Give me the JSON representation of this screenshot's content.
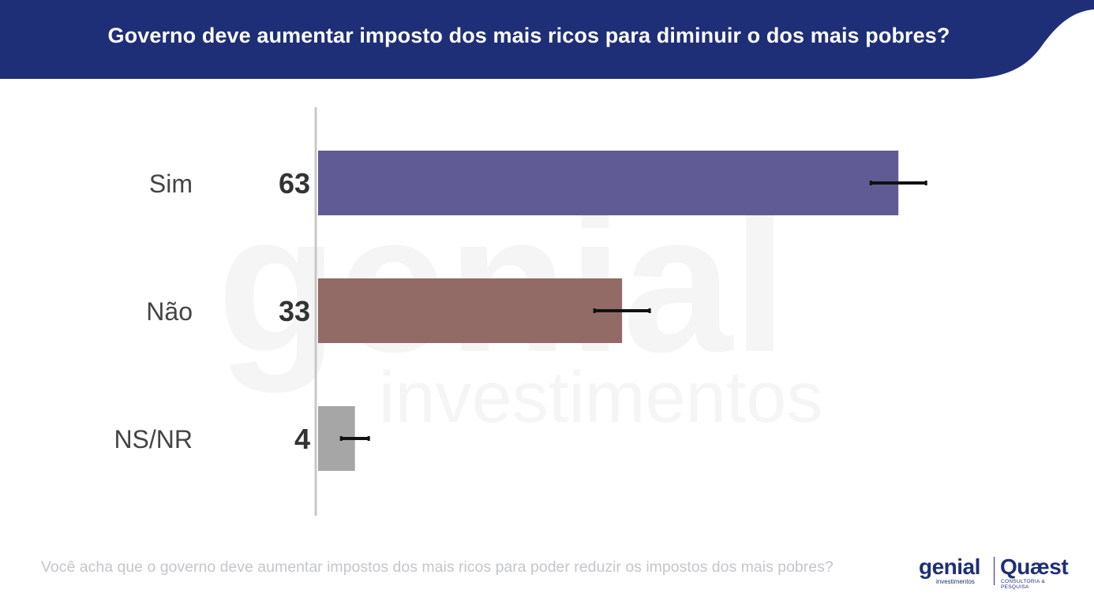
{
  "header": {
    "title": "Governo deve aumentar imposto dos mais ricos para diminuir o dos mais pobres?",
    "background_color": "#1e2f77"
  },
  "watermark": {
    "brand": "genial",
    "sub": "investimentos"
  },
  "chart_data": {
    "type": "bar",
    "orientation": "horizontal",
    "categories": [
      "Sim",
      "Não",
      "NS/NR"
    ],
    "values": [
      63,
      33,
      4
    ],
    "error_margin": [
      3,
      3,
      1.5
    ],
    "colors": [
      "#605b94",
      "#926a66",
      "#a6a6a6"
    ],
    "xlim": [
      0,
      100
    ],
    "grid": false,
    "title": "",
    "xlabel": "",
    "ylabel": ""
  },
  "footer": {
    "question": "Você acha que o governo deve aumentar impostos dos mais ricos para poder reduzir os impostos dos mais pobres?"
  },
  "logos": {
    "genial": "genial",
    "genial_sub": "investimentos",
    "quaest": "Quæst",
    "quaest_sub": "CONSULTORIA & PESQUISA"
  }
}
